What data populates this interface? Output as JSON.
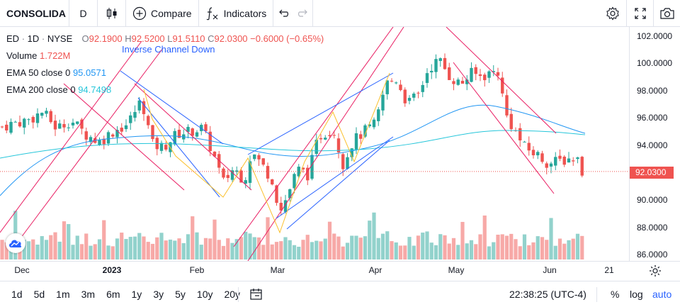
{
  "toolbar": {
    "symbol": "CONSOLIDA",
    "interval": "D",
    "compare_label": "Compare",
    "indicators_label": "Indicators",
    "icons": [
      "candles-icon",
      "plus-circle-icon",
      "fx-icon",
      "undo-icon",
      "redo-icon",
      "gear-icon",
      "fullscreen-icon",
      "camera-icon"
    ]
  },
  "legend": {
    "symbol": "ED",
    "interval": "1D",
    "exchange": "NYSE",
    "o_label": "O",
    "o_value": "92.1900",
    "h_label": "H",
    "h_value": "92.5200",
    "l_label": "L",
    "l_value": "91.5110",
    "c_label": "C",
    "c_value": "92.0300",
    "change": "−0.6000 (−0.65%)",
    "volume_label": "Volume",
    "volume_value": "1.722M",
    "ema50_label": "EMA 50 close 0",
    "ema50_value": "95.0571",
    "ema200_label": "EMA 200 close 0",
    "ema200_value": "94.7498"
  },
  "drawing": {
    "channel_label": "Inverse Channel Down"
  },
  "price_scale": {
    "labels": [
      "102.0000",
      "100.0000",
      "98.0000",
      "96.0000",
      "94.0000",
      "92.0000",
      "90.0000",
      "88.0000",
      "86.0000"
    ],
    "current_price": "92.0300"
  },
  "time_scale": {
    "labels": [
      "Dec",
      "2023",
      "Feb",
      "Mar",
      "Apr",
      "May",
      "Jun",
      "21"
    ]
  },
  "bottombar": {
    "ranges": [
      "1d",
      "5d",
      "1m",
      "3m",
      "6m",
      "1y",
      "3y",
      "5y",
      "10y",
      "20y"
    ],
    "clock": "22:38:25 (UTC-4)",
    "percent_label": "%",
    "log_label": "log",
    "auto_label": "auto"
  },
  "colors": {
    "up": "#26a69a",
    "down": "#ef5350",
    "ema50": "#2196f3",
    "ema200": "#26c6da",
    "fib_lines": "#e91e63",
    "channel": "#2962ff",
    "accent": "#2962ff"
  }
}
